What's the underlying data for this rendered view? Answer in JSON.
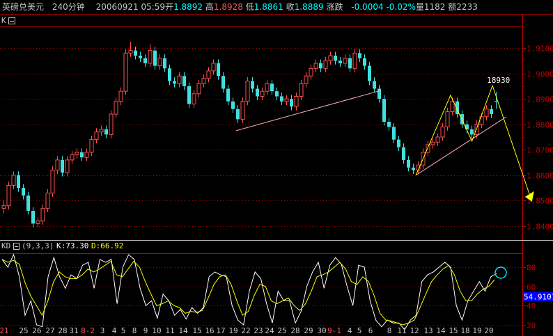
{
  "header": {
    "symbol": "英磅兑美元",
    "period": "240分钟",
    "datetime": "20060921 05:59",
    "open_label": "开",
    "open": "1.8892",
    "high_label": "高",
    "high": "1.8928",
    "low_label": "低",
    "low": "1.8861",
    "close_label": "收",
    "close": "1.8889",
    "change_label": "涨跌",
    "change": "-0.0004",
    "change_pct": "-0.02%",
    "volume_label": "量",
    "volume": "1182",
    "amount_label": "额",
    "amount": "2233"
  },
  "colors": {
    "background": "#000000",
    "frame": "#a00000",
    "up": "#ff5050",
    "down": "#40e0e0",
    "k_line": "#ffffff",
    "d_line": "#ffff00",
    "trendline": "#ffb0b0",
    "zigzag": "#ffff00",
    "axis_text": "#c00000",
    "header_value": "#00ffff"
  },
  "chart_data": [
    {
      "type": "candlestick",
      "panel_label": "K",
      "ylim": [
        1.835,
        1.917
      ],
      "y_ticks": [
        "1.8400",
        "1.8500",
        "1.8600",
        "1.8700",
        "1.8800",
        "1.8900",
        "1.9000",
        "1.9100"
      ],
      "grid": "dotted horizontal",
      "candles": [
        [
          1.847,
          1.85,
          1.845,
          1.848
        ],
        [
          1.848,
          1.8575,
          1.8465,
          1.856
        ],
        [
          1.856,
          1.8615,
          1.8545,
          1.86
        ],
        [
          1.86,
          1.8615,
          1.8535,
          1.855
        ],
        [
          1.855,
          1.8565,
          1.8505,
          1.852
        ],
        [
          1.852,
          1.8535,
          1.8445,
          1.846
        ],
        [
          1.846,
          1.8475,
          1.8395,
          1.841
        ],
        [
          1.841,
          1.8435,
          1.8395,
          1.842
        ],
        [
          1.842,
          1.8485,
          1.8405,
          1.847
        ],
        [
          1.847,
          1.8545,
          1.8455,
          1.853
        ],
        [
          1.853,
          1.8635,
          1.8515,
          1.862
        ],
        [
          1.862,
          1.8675,
          1.8605,
          1.866
        ],
        [
          1.866,
          1.8675,
          1.8595,
          1.861
        ],
        [
          1.861,
          1.8675,
          1.8595,
          1.866
        ],
        [
          1.866,
          1.8695,
          1.8645,
          1.868
        ],
        [
          1.868,
          1.8705,
          1.8665,
          1.869
        ],
        [
          1.869,
          1.8705,
          1.8655,
          1.867
        ],
        [
          1.867,
          1.8705,
          1.8655,
          1.869
        ],
        [
          1.869,
          1.8755,
          1.8675,
          1.874
        ],
        [
          1.874,
          1.8785,
          1.8725,
          1.877
        ],
        [
          1.877,
          1.8795,
          1.8755,
          1.878
        ],
        [
          1.878,
          1.8795,
          1.8745,
          1.876
        ],
        [
          1.876,
          1.8855,
          1.8745,
          1.884
        ],
        [
          1.884,
          1.8905,
          1.8825,
          1.889
        ],
        [
          1.889,
          1.8945,
          1.8875,
          1.893
        ],
        [
          1.893,
          1.9095,
          1.8915,
          1.908
        ],
        [
          1.908,
          1.9125,
          1.9065,
          1.909
        ],
        [
          1.909,
          1.9105,
          1.9055,
          1.907
        ],
        [
          1.907,
          1.9085,
          1.9045,
          1.906
        ],
        [
          1.906,
          1.9075,
          1.9025,
          1.904
        ],
        [
          1.904,
          1.9115,
          1.9025,
          1.909
        ],
        [
          1.909,
          1.9105,
          1.9015,
          1.903
        ],
        [
          1.903,
          1.9075,
          1.9015,
          1.906
        ],
        [
          1.906,
          1.9075,
          1.9005,
          1.902
        ],
        [
          1.902,
          1.9035,
          1.8955,
          1.897
        ],
        [
          1.897,
          1.8985,
          1.8945,
          1.896
        ],
        [
          1.896,
          1.9005,
          1.8945,
          1.899
        ],
        [
          1.899,
          1.9005,
          1.8935,
          1.895
        ],
        [
          1.895,
          1.8965,
          1.8865,
          1.888
        ],
        [
          1.888,
          1.8935,
          1.8865,
          1.892
        ],
        [
          1.892,
          1.8975,
          1.8905,
          1.896
        ],
        [
          1.896,
          1.8995,
          1.8945,
          1.898
        ],
        [
          1.898,
          1.9025,
          1.8965,
          1.901
        ],
        [
          1.901,
          1.9055,
          1.8995,
          1.904
        ],
        [
          1.904,
          1.9055,
          1.8975,
          1.899
        ],
        [
          1.899,
          1.9005,
          1.8925,
          1.894
        ],
        [
          1.894,
          1.8955,
          1.8875,
          1.889
        ],
        [
          1.889,
          1.8905,
          1.8845,
          1.886
        ],
        [
          1.886,
          1.8875,
          1.8805,
          1.882
        ],
        [
          1.882,
          1.8905,
          1.8805,
          1.889
        ],
        [
          1.889,
          1.8985,
          1.8875,
          1.897
        ],
        [
          1.897,
          1.8985,
          1.8925,
          1.894
        ],
        [
          1.894,
          1.8955,
          1.8895,
          1.891
        ],
        [
          1.891,
          1.8945,
          1.8895,
          1.893
        ],
        [
          1.893,
          1.8975,
          1.8915,
          1.896
        ],
        [
          1.896,
          1.8975,
          1.8915,
          1.893
        ],
        [
          1.893,
          1.8945,
          1.8895,
          1.891
        ],
        [
          1.891,
          1.8925,
          1.8875,
          1.889
        ],
        [
          1.889,
          1.8915,
          1.8875,
          1.89
        ],
        [
          1.89,
          1.8915,
          1.8855,
          1.887
        ],
        [
          1.887,
          1.8925,
          1.8855,
          1.891
        ],
        [
          1.891,
          1.8975,
          1.8895,
          1.896
        ],
        [
          1.896,
          1.9005,
          1.8945,
          1.899
        ],
        [
          1.899,
          1.9035,
          1.8975,
          1.902
        ],
        [
          1.902,
          1.9055,
          1.9005,
          1.904
        ],
        [
          1.904,
          1.9055,
          1.9005,
          1.902
        ],
        [
          1.902,
          1.9065,
          1.9005,
          1.905
        ],
        [
          1.905,
          1.9085,
          1.9035,
          1.907
        ],
        [
          1.907,
          1.9085,
          1.9035,
          1.905
        ],
        [
          1.905,
          1.9065,
          1.9025,
          1.904
        ],
        [
          1.904,
          1.9075,
          1.9025,
          1.906
        ],
        [
          1.906,
          1.9075,
          1.9005,
          1.902
        ],
        [
          1.902,
          1.9095,
          1.9005,
          1.908
        ],
        [
          1.908,
          1.9095,
          1.9045,
          1.906
        ],
        [
          1.906,
          1.9075,
          1.9015,
          1.903
        ],
        [
          1.903,
          1.9045,
          1.8955,
          1.897
        ],
        [
          1.897,
          1.8985,
          1.8925,
          1.894
        ],
        [
          1.894,
          1.8955,
          1.8885,
          1.89
        ],
        [
          1.89,
          1.8915,
          1.8795,
          1.881
        ],
        [
          1.881,
          1.8825,
          1.8775,
          1.879
        ],
        [
          1.879,
          1.8805,
          1.8725,
          1.874
        ],
        [
          1.874,
          1.8755,
          1.8695,
          1.871
        ],
        [
          1.871,
          1.8725,
          1.8645,
          1.866
        ],
        [
          1.866,
          1.8675,
          1.8615,
          1.863
        ],
        [
          1.863,
          1.8645,
          1.8605,
          1.862
        ],
        [
          1.862,
          1.8655,
          1.8605,
          1.864
        ],
        [
          1.864,
          1.8705,
          1.8625,
          1.869
        ],
        [
          1.869,
          1.8735,
          1.8675,
          1.872
        ],
        [
          1.872,
          1.8745,
          1.8705,
          1.873
        ],
        [
          1.873,
          1.8765,
          1.8715,
          1.875
        ],
        [
          1.875,
          1.8805,
          1.8735,
          1.879
        ],
        [
          1.879,
          1.8865,
          1.8775,
          1.885
        ],
        [
          1.885,
          1.8905,
          1.8835,
          1.889
        ],
        [
          1.889,
          1.8905,
          1.8825,
          1.884
        ],
        [
          1.884,
          1.8855,
          1.8785,
          1.88
        ],
        [
          1.88,
          1.8815,
          1.8765,
          1.878
        ],
        [
          1.878,
          1.8795,
          1.8745,
          1.876
        ],
        [
          1.876,
          1.8815,
          1.8745,
          1.88
        ],
        [
          1.88,
          1.8845,
          1.8785,
          1.883
        ],
        [
          1.883,
          1.8875,
          1.8815,
          1.886
        ],
        [
          1.886,
          1.8875,
          1.8825,
          1.884
        ],
        [
          1.8892,
          1.8928,
          1.8861,
          1.8889
        ]
      ],
      "trendlines": [
        [
          [
            47.7,
            1.8775
          ],
          [
            77.4,
            1.8933
          ]
        ],
        [
          [
            84.6,
            1.86
          ],
          [
            103.1,
            1.8829
          ]
        ]
      ],
      "zigzag": [
        [
          84.6,
          1.86
        ],
        [
          91.7,
          1.8914
        ],
        [
          96.1,
          1.8734
        ],
        [
          100.3,
          1.8952
        ],
        [
          108.4,
          1.8496
        ]
      ],
      "annotation": "18930"
    },
    {
      "type": "line",
      "panel_label": "KD",
      "params": "(9,3,3)",
      "k_label": "K:73.30",
      "d_label": "D:66.92",
      "ylim": [
        10,
        98
      ],
      "y_ticks": [
        "20",
        "40",
        "60",
        "80"
      ],
      "current_value": "54.9107",
      "series": [
        {
          "name": "K",
          "values": [
            88,
            80,
            93,
            70,
            30,
            45,
            20,
            18,
            70,
            90,
            70,
            58,
            72,
            68,
            82,
            85,
            58,
            88,
            85,
            88,
            42,
            80,
            93,
            88,
            58,
            40,
            45,
            27,
            52,
            45,
            30,
            36,
            26,
            38,
            32,
            38,
            70,
            75,
            72,
            70,
            40,
            25,
            20,
            55,
            75,
            68,
            42,
            22,
            55,
            45,
            45,
            22,
            34,
            60,
            75,
            85,
            58,
            82,
            90,
            83,
            60,
            40,
            82,
            80,
            45,
            25,
            18,
            25,
            22,
            22,
            15,
            25,
            30,
            65,
            72,
            75,
            80,
            85,
            80,
            40,
            25,
            45,
            55,
            65,
            55,
            70,
            73.3
          ]
        },
        {
          "name": "D",
          "values": [
            88,
            85,
            87,
            83,
            64,
            50,
            40,
            30,
            45,
            65,
            75,
            70,
            68,
            68,
            72,
            78,
            75,
            78,
            82,
            86,
            72,
            70,
            78,
            86,
            80,
            65,
            52,
            40,
            42,
            45,
            40,
            38,
            32,
            34,
            33,
            35,
            48,
            62,
            70,
            72,
            62,
            45,
            30,
            34,
            50,
            62,
            60,
            45,
            42,
            45,
            48,
            40,
            35,
            42,
            55,
            70,
            72,
            75,
            80,
            85,
            78,
            65,
            62,
            70,
            65,
            50,
            32,
            25,
            24,
            22,
            20,
            22,
            25,
            38,
            52,
            65,
            72,
            78,
            82,
            72,
            55,
            45,
            45,
            52,
            57,
            60,
            66.92
          ]
        }
      ],
      "x_labels": [
        "21",
        "25",
        "26",
        "27",
        "28",
        "31",
        "8-2",
        "3",
        "4",
        "5",
        "8",
        "9",
        "10",
        "11",
        "14",
        "15",
        "16",
        "17",
        "19",
        "22",
        "23",
        "24",
        "25",
        "28",
        "29",
        "30",
        "9-1",
        "4",
        "5",
        "6",
        "8",
        "11",
        "12",
        "13",
        "14",
        "15",
        "18",
        "19",
        "20"
      ],
      "x_labels_highlight": [
        "21",
        "8-2",
        "9-1"
      ]
    }
  ]
}
